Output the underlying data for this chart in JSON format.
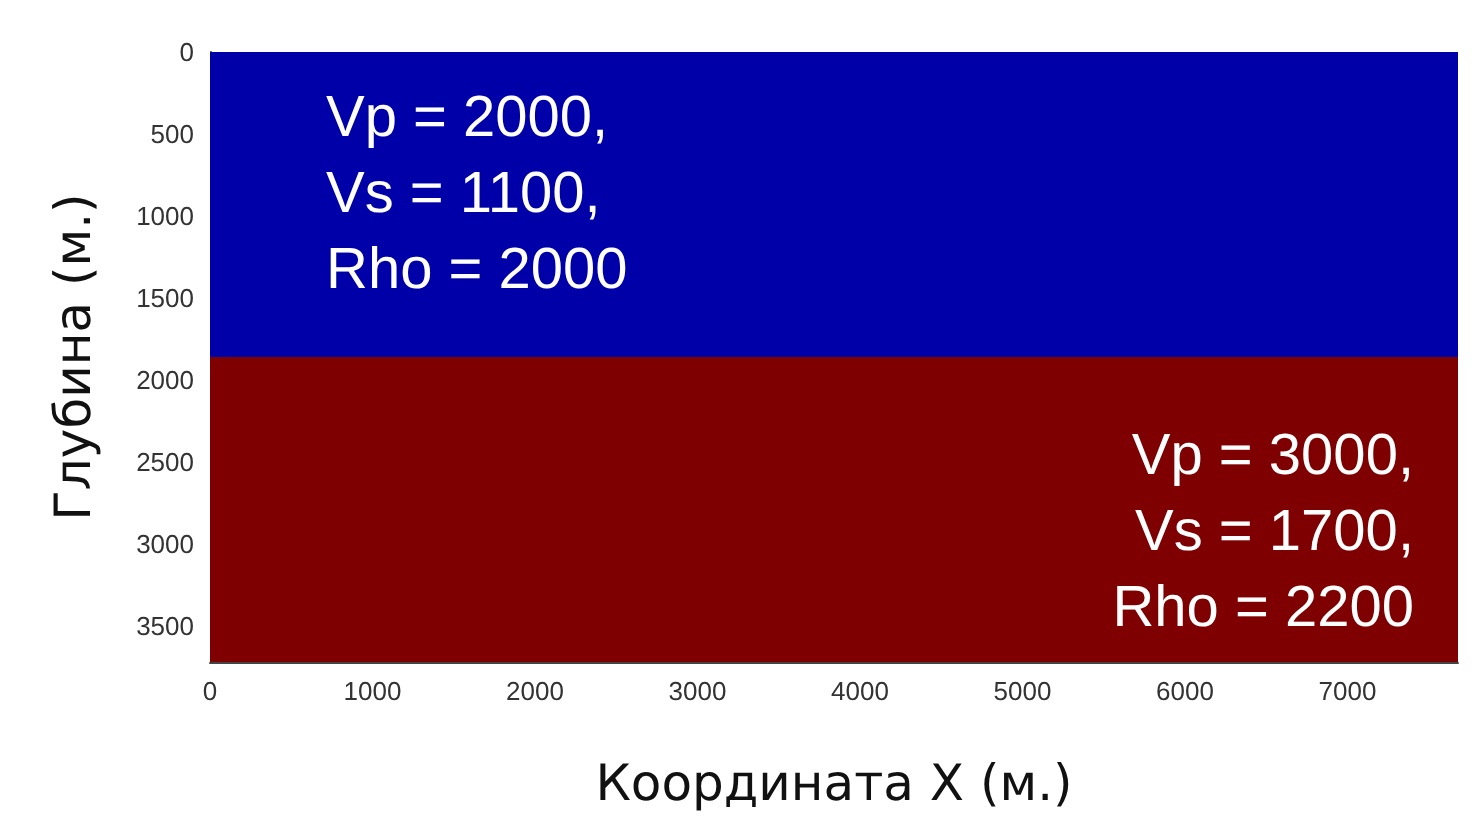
{
  "chart_data": {
    "type": "area",
    "xlabel": "Координата X (м.)",
    "ylabel": "Глубина (м.)",
    "xlim": [
      0,
      7680
    ],
    "ylim": [
      3720,
      0
    ],
    "xticks": [
      0,
      1000,
      2000,
      3000,
      4000,
      5000,
      6000,
      7000
    ],
    "yticks": [
      0,
      500,
      1000,
      1500,
      2000,
      2500,
      3000,
      3500
    ],
    "bands": [
      {
        "axis": "y",
        "from": 0,
        "to": 1860,
        "label": "Vp = 2000,\nVs = 1100,\nRho = 2000",
        "color": "#0000a8"
      },
      {
        "axis": "y",
        "from": 1860,
        "to": 3720,
        "label": "Vp = 3000,\nVs = 1700,\nRho = 2200",
        "color": "#7f0000"
      }
    ]
  }
}
